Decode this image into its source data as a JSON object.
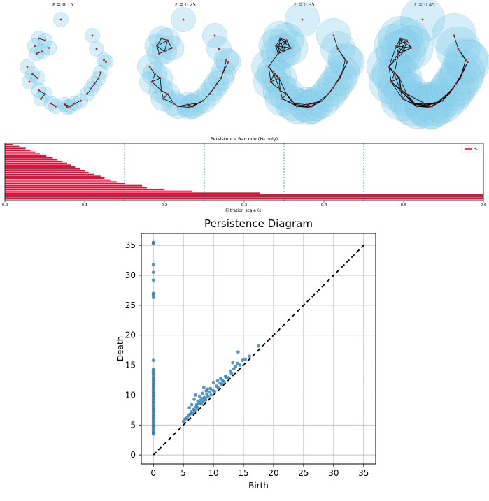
{
  "colors": {
    "ball_fill": "#87CEEB",
    "ball_stroke": "#6cb8d8",
    "point": "#b22222",
    "edge": "#000000",
    "bar": "#dc143c",
    "eps_line": "#1f77b4",
    "scatter": "#1f77b4",
    "diagonal": "#000000",
    "grid": "#b0b0b0"
  },
  "chart_data": [
    {
      "type": "scatter",
      "panel": "filtration",
      "titles": [
        "ε = 0.15",
        "ε = 0.25",
        "ε = 0.35",
        "ε = 0.45"
      ],
      "epsilons": [
        0.15,
        0.25,
        0.35,
        0.45
      ],
      "points": [
        [
          0.48,
          0.0
        ],
        [
          0.27,
          0.2
        ],
        [
          0.33,
          0.22
        ],
        [
          0.23,
          0.28
        ],
        [
          0.37,
          0.3
        ],
        [
          0.3,
          0.34
        ],
        [
          0.25,
          0.36
        ],
        [
          0.78,
          0.17
        ],
        [
          0.82,
          0.31
        ],
        [
          0.89,
          0.43
        ],
        [
          0.91,
          0.45
        ],
        [
          0.16,
          0.5
        ],
        [
          0.21,
          0.58
        ],
        [
          0.26,
          0.62
        ],
        [
          0.18,
          0.66
        ],
        [
          0.27,
          0.75
        ],
        [
          0.33,
          0.79
        ],
        [
          0.29,
          0.84
        ],
        [
          0.39,
          0.89
        ],
        [
          0.43,
          0.92
        ],
        [
          0.52,
          0.9
        ],
        [
          0.54,
          0.93
        ],
        [
          0.57,
          0.92
        ],
        [
          0.61,
          0.89
        ],
        [
          0.67,
          0.86
        ],
        [
          0.73,
          0.79
        ],
        [
          0.77,
          0.73
        ],
        [
          0.8,
          0.68
        ],
        [
          0.84,
          0.62
        ],
        [
          0.86,
          0.56
        ]
      ]
    },
    {
      "type": "bar",
      "title": "Persistence Barcode (H₀ only)",
      "xlabel": "Filtration scale (ε)",
      "legend": "H₀",
      "legend_position": "top-right",
      "xlim": [
        0,
        0.6
      ],
      "xticks": [
        "0.0",
        "0.1",
        "0.2",
        "0.3",
        "0.4",
        "0.5",
        "0.6"
      ],
      "epsilon_lines": [
        0.15,
        0.25,
        0.35,
        0.45
      ],
      "bars": [
        {
          "birth": 0,
          "death": 0.6
        },
        {
          "birth": 0,
          "death": 0.6
        },
        {
          "birth": 0,
          "death": 0.6
        },
        {
          "birth": 0,
          "death": 0.32
        },
        {
          "birth": 0,
          "death": 0.235
        },
        {
          "birth": 0,
          "death": 0.2
        },
        {
          "birth": 0,
          "death": 0.178
        },
        {
          "birth": 0,
          "death": 0.172
        },
        {
          "birth": 0,
          "death": 0.15
        },
        {
          "birth": 0,
          "death": 0.14
        },
        {
          "birth": 0,
          "death": 0.132
        },
        {
          "birth": 0,
          "death": 0.125
        },
        {
          "birth": 0,
          "death": 0.12
        },
        {
          "birth": 0,
          "death": 0.112
        },
        {
          "birth": 0,
          "death": 0.105
        },
        {
          "birth": 0,
          "death": 0.1
        },
        {
          "birth": 0,
          "death": 0.094
        },
        {
          "birth": 0,
          "death": 0.088
        },
        {
          "birth": 0,
          "death": 0.083
        },
        {
          "birth": 0,
          "death": 0.078
        },
        {
          "birth": 0,
          "death": 0.072
        },
        {
          "birth": 0,
          "death": 0.066
        },
        {
          "birth": 0,
          "death": 0.06
        },
        {
          "birth": 0,
          "death": 0.052
        },
        {
          "birth": 0,
          "death": 0.044
        },
        {
          "birth": 0,
          "death": 0.038
        },
        {
          "birth": 0,
          "death": 0.032
        },
        {
          "birth": 0,
          "death": 0.026
        },
        {
          "birth": 0,
          "death": 0.018
        },
        {
          "birth": 0,
          "death": 0.01
        }
      ]
    },
    {
      "type": "scatter",
      "title": "Persistence Diagram",
      "xlabel": "Birth",
      "ylabel": "Death",
      "xlim": [
        -2,
        37
      ],
      "ylim": [
        -1.5,
        37
      ],
      "xticks": [
        0,
        5,
        10,
        15,
        20,
        25,
        30,
        35
      ],
      "yticks": [
        0,
        5,
        10,
        15,
        20,
        25,
        30,
        35
      ],
      "grid": true,
      "diagonal": [
        0,
        35.3
      ],
      "points": [
        [
          0,
          35.5
        ],
        [
          0,
          35.3
        ],
        [
          0,
          31.8
        ],
        [
          0,
          30.5
        ],
        [
          0,
          29.2
        ],
        [
          0,
          27.0
        ],
        [
          0,
          26.7
        ],
        [
          0,
          26.3
        ],
        [
          0,
          15.8
        ],
        [
          0,
          14.3
        ],
        [
          0,
          14.0
        ],
        [
          0,
          13.7
        ],
        [
          0,
          13.4
        ],
        [
          0,
          13.0
        ],
        [
          0,
          12.7
        ],
        [
          0,
          12.4
        ],
        [
          0,
          12.1
        ],
        [
          0,
          11.8
        ],
        [
          0,
          11.5
        ],
        [
          0,
          11.2
        ],
        [
          0,
          10.9
        ],
        [
          0,
          10.6
        ],
        [
          0,
          10.3
        ],
        [
          0,
          10.0
        ],
        [
          0,
          9.7
        ],
        [
          0,
          9.4
        ],
        [
          0,
          9.1
        ],
        [
          0,
          8.8
        ],
        [
          0,
          8.5
        ],
        [
          0,
          8.2
        ],
        [
          0,
          7.9
        ],
        [
          0,
          7.6
        ],
        [
          0,
          7.3
        ],
        [
          0,
          7.0
        ],
        [
          0,
          6.7
        ],
        [
          0,
          6.4
        ],
        [
          0,
          6.1
        ],
        [
          0,
          5.8
        ],
        [
          0,
          5.5
        ],
        [
          0,
          5.2
        ],
        [
          0,
          4.9
        ],
        [
          0,
          4.6
        ],
        [
          0,
          4.3
        ],
        [
          0,
          4.0
        ],
        [
          0,
          3.7
        ],
        [
          0,
          3.5
        ],
        [
          5.0,
          5.6
        ],
        [
          5.3,
          6.0
        ],
        [
          5.6,
          6.2
        ],
        [
          5.9,
          6.6
        ],
        [
          6.1,
          6.8
        ],
        [
          6.3,
          7.2
        ],
        [
          6.5,
          7.0
        ],
        [
          6.7,
          7.6
        ],
        [
          6.9,
          7.4
        ],
        [
          7.1,
          8.0
        ],
        [
          7.2,
          8.4
        ],
        [
          7.4,
          7.9
        ],
        [
          7.6,
          8.6
        ],
        [
          7.8,
          9.1
        ],
        [
          8.0,
          8.5
        ],
        [
          8.1,
          9.4
        ],
        [
          8.3,
          8.9
        ],
        [
          8.5,
          9.6
        ],
        [
          8.7,
          9.2
        ],
        [
          8.9,
          10.1
        ],
        [
          9.1,
          9.7
        ],
        [
          9.3,
          10.5
        ],
        [
          9.6,
          10.0
        ],
        [
          9.9,
          10.8
        ],
        [
          10.2,
          10.6
        ],
        [
          10.5,
          11.5
        ],
        [
          10.8,
          11.2
        ],
        [
          11.1,
          12.0
        ],
        [
          11.4,
          11.8
        ],
        [
          11.8,
          12.2
        ],
        [
          12.1,
          13.0
        ],
        [
          12.5,
          12.9
        ],
        [
          13.0,
          13.6
        ],
        [
          13.4,
          14.4
        ],
        [
          13.7,
          14.8
        ],
        [
          14.0,
          15.3
        ],
        [
          14.4,
          15.0
        ],
        [
          14.8,
          15.8
        ],
        [
          15.3,
          16.0
        ],
        [
          16.0,
          16.5
        ],
        [
          17.5,
          18.2
        ],
        [
          7.0,
          10.0
        ],
        [
          7.7,
          9.8
        ],
        [
          8.2,
          10.3
        ],
        [
          8.8,
          10.7
        ],
        [
          9.0,
          11.0
        ],
        [
          10.0,
          12.1
        ],
        [
          10.7,
          12.4
        ],
        [
          11.2,
          12.8
        ],
        [
          12.0,
          13.1
        ],
        [
          12.8,
          14.0
        ],
        [
          14.1,
          17.2
        ],
        [
          6.0,
          7.9
        ],
        [
          6.4,
          8.4
        ],
        [
          6.8,
          9.3
        ],
        [
          7.4,
          9.0
        ],
        [
          8.4,
          11.3
        ],
        [
          9.5,
          11.1
        ],
        [
          11.5,
          12.5
        ],
        [
          13.2,
          15.4
        ]
      ]
    }
  ]
}
